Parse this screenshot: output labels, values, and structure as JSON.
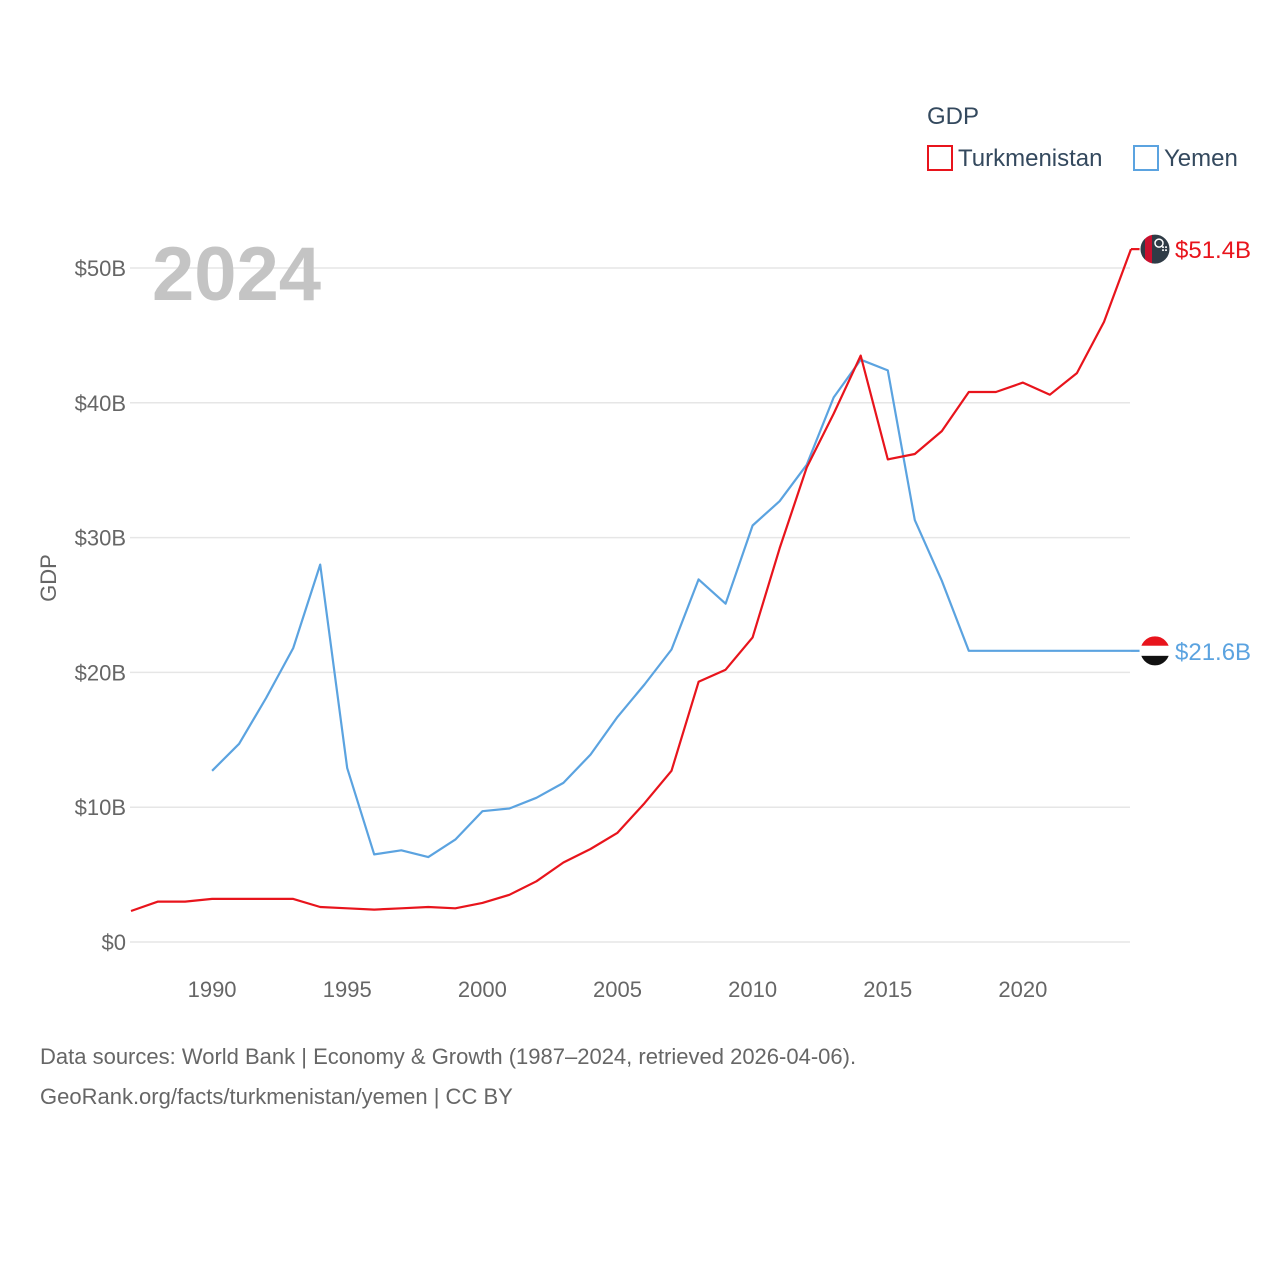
{
  "chart_data": {
    "type": "line",
    "title": "",
    "ylabel": "GDP",
    "xlabel": "",
    "ylim": [
      0,
      50
    ],
    "xlim": [
      1987,
      2024
    ],
    "yticks": [
      {
        "value": 0,
        "label": "$0"
      },
      {
        "value": 10,
        "label": "$10B"
      },
      {
        "value": 20,
        "label": "$20B"
      },
      {
        "value": 30,
        "label": "$30B"
      },
      {
        "value": 40,
        "label": "$40B"
      },
      {
        "value": 50,
        "label": "$50B"
      }
    ],
    "xticks": [
      {
        "value": 1990,
        "label": "1990"
      },
      {
        "value": 1995,
        "label": "1995"
      },
      {
        "value": 2000,
        "label": "2000"
      },
      {
        "value": 2005,
        "label": "2005"
      },
      {
        "value": 2010,
        "label": "2010"
      },
      {
        "value": 2015,
        "label": "2015"
      },
      {
        "value": 2020,
        "label": "2020"
      }
    ],
    "current_year": "2024",
    "legend": {
      "title": "GDP",
      "position": "top-right"
    },
    "series": [
      {
        "name": "Turkmenistan",
        "color": "#e8141c",
        "end_label": "$51.4B",
        "flag": "turkmenistan-flag-icon",
        "points": [
          [
            1987,
            2.3
          ],
          [
            1988,
            3.0
          ],
          [
            1989,
            3.0
          ],
          [
            1990,
            3.2
          ],
          [
            1991,
            3.2
          ],
          [
            1992,
            3.2
          ],
          [
            1993,
            3.2
          ],
          [
            1994,
            2.6
          ],
          [
            1995,
            2.5
          ],
          [
            1996,
            2.4
          ],
          [
            1997,
            2.5
          ],
          [
            1998,
            2.6
          ],
          [
            1999,
            2.5
          ],
          [
            2000,
            2.9
          ],
          [
            2001,
            3.5
          ],
          [
            2002,
            4.5
          ],
          [
            2003,
            5.9
          ],
          [
            2004,
            6.9
          ],
          [
            2005,
            8.1
          ],
          [
            2006,
            10.3
          ],
          [
            2007,
            12.7
          ],
          [
            2008,
            19.3
          ],
          [
            2009,
            20.2
          ],
          [
            2010,
            22.6
          ],
          [
            2011,
            29.2
          ],
          [
            2012,
            35.2
          ],
          [
            2013,
            39.2
          ],
          [
            2014,
            43.5
          ],
          [
            2015,
            35.8
          ],
          [
            2016,
            36.2
          ],
          [
            2017,
            37.9
          ],
          [
            2018,
            40.8
          ],
          [
            2019,
            40.8
          ],
          [
            2020,
            41.5
          ],
          [
            2021,
            40.6
          ],
          [
            2022,
            42.2
          ],
          [
            2023,
            46.0
          ],
          [
            2024,
            51.4
          ]
        ]
      },
      {
        "name": "Yemen",
        "color": "#5ba3e0",
        "end_label": "$21.6B",
        "flag": "yemen-flag-icon",
        "points": [
          [
            1990,
            12.7
          ],
          [
            1991,
            14.7
          ],
          [
            1992,
            18.1
          ],
          [
            1993,
            21.8
          ],
          [
            1994,
            28.0
          ],
          [
            1995,
            12.9
          ],
          [
            1996,
            6.5
          ],
          [
            1997,
            6.8
          ],
          [
            1998,
            6.3
          ],
          [
            1999,
            7.6
          ],
          [
            2000,
            9.7
          ],
          [
            2001,
            9.9
          ],
          [
            2002,
            10.7
          ],
          [
            2003,
            11.8
          ],
          [
            2004,
            13.9
          ],
          [
            2005,
            16.7
          ],
          [
            2006,
            19.1
          ],
          [
            2007,
            21.7
          ],
          [
            2008,
            26.9
          ],
          [
            2009,
            25.1
          ],
          [
            2010,
            30.9
          ],
          [
            2011,
            32.7
          ],
          [
            2012,
            35.4
          ],
          [
            2013,
            40.4
          ],
          [
            2014,
            43.2
          ],
          [
            2015,
            42.4
          ],
          [
            2016,
            31.3
          ],
          [
            2017,
            26.8
          ],
          [
            2018,
            21.6
          ],
          [
            2019,
            21.6
          ],
          [
            2020,
            21.6
          ],
          [
            2021,
            21.6
          ],
          [
            2022,
            21.6
          ],
          [
            2023,
            21.6
          ],
          [
            2024,
            21.6
          ]
        ]
      }
    ]
  },
  "footer": {
    "line1": "Data sources: World Bank | Economy & Growth (1987–2024, retrieved 2026-04-06).",
    "line2": "GeoRank.org/facts/turkmenistan/yemen | CC BY"
  }
}
